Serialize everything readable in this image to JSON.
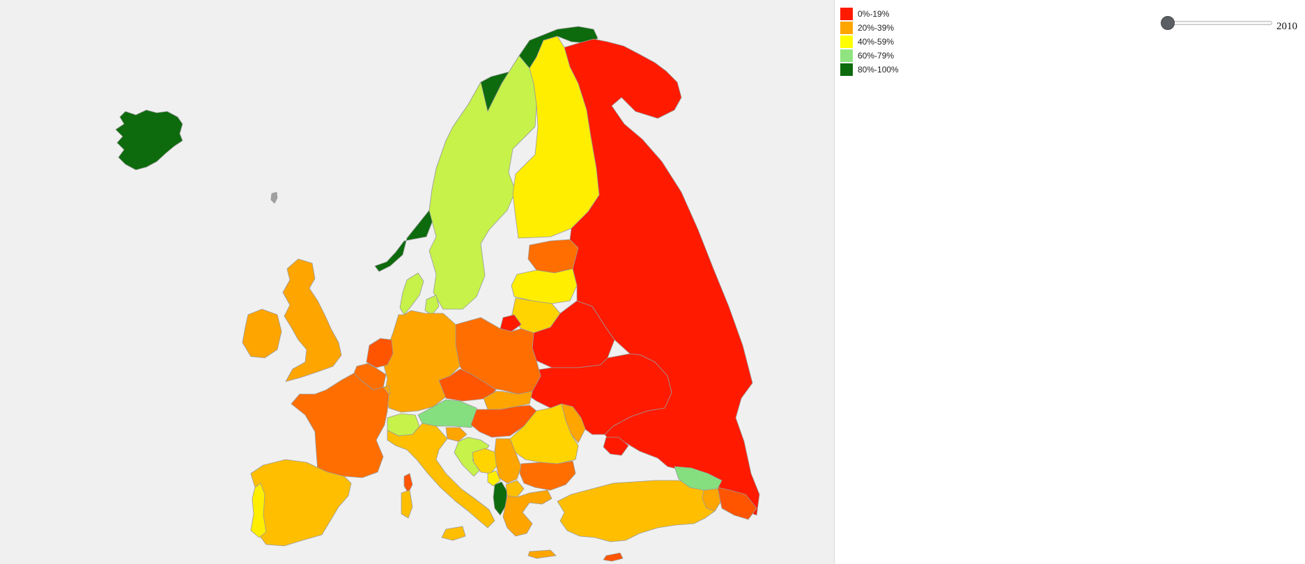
{
  "colors": {
    "map_background": "#f0f0f0",
    "border": "#9a9a9a",
    "red": "#ff1a00",
    "red_orange": "#ff5500",
    "dark_orange": "#ff6e00",
    "orange": "#ffa500",
    "amber": "#ffbf00",
    "gold": "#ffd400",
    "yellow": "#ffee00",
    "lime": "#c6f24a",
    "light_green": "#85df7e",
    "dark_green": "#0d6b0d",
    "no_data": "#a0a0a0"
  },
  "legend": {
    "items": [
      {
        "label": "0%-19%",
        "color": "#ff1a00"
      },
      {
        "label": "20%-39%",
        "color": "#ffa500"
      },
      {
        "label": "40%-59%",
        "color": "#ffff00"
      },
      {
        "label": "60%-79%",
        "color": "#90e480"
      },
      {
        "label": "80%-100%",
        "color": "#0d6b0d"
      }
    ]
  },
  "slider": {
    "year": "2010",
    "position_fraction": 0
  }
}
